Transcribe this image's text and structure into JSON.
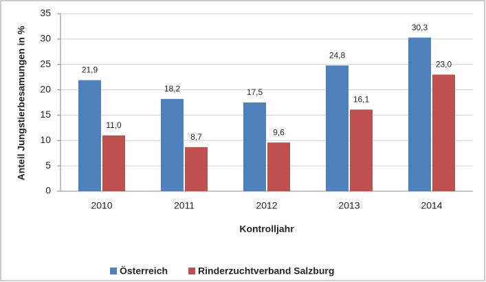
{
  "chart_data": {
    "type": "bar",
    "xlabel": "Kontrolljahr",
    "ylabel": "Anteil Jungstierbesamungen in %",
    "categories": [
      "2010",
      "2011",
      "2012",
      "2013",
      "2014"
    ],
    "series": [
      {
        "name": "Österreich",
        "color": "#4f81bd",
        "values": [
          21.9,
          18.2,
          17.5,
          24.8,
          30.3
        ],
        "value_labels": [
          "21,9",
          "18,2",
          "17,5",
          "24,8",
          "30,3"
        ]
      },
      {
        "name": "Rinderzuchtverband Salzburg",
        "color": "#c0504d",
        "values": [
          11.0,
          8.7,
          9.6,
          16.1,
          23.0
        ],
        "value_labels": [
          "11,0",
          "8,7",
          "9,6",
          "16,1",
          "23,0"
        ]
      }
    ],
    "ylim": [
      0,
      35
    ],
    "yticks": [
      0,
      5,
      10,
      15,
      20,
      25,
      30,
      35
    ],
    "grid": true,
    "legend": "bottom"
  }
}
